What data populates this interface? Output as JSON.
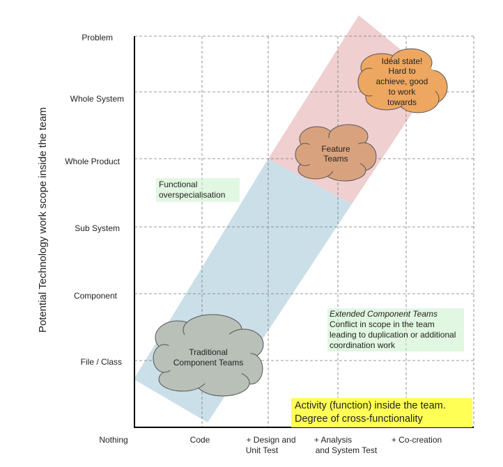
{
  "y_axis": {
    "title": "Potential Technology work scope inside the team",
    "levels": [
      "Problem",
      "Whole System",
      "Whole Product",
      "Sub System",
      "Component",
      "File / Class"
    ]
  },
  "x_axis": {
    "levels": [
      {
        "line1": "Nothing",
        "line2": ""
      },
      {
        "line1": "Code",
        "line2": ""
      },
      {
        "line1": "+ Design and",
        "line2": "Unit Test"
      },
      {
        "line1": "+ Analysis",
        "line2": "and System Test"
      },
      {
        "line1": "+ Co-creation",
        "line2": ""
      }
    ]
  },
  "clouds": {
    "ideal": {
      "lines": [
        "Ideal state!",
        "Hard to",
        "achieve, good",
        "to work",
        "towards"
      ],
      "color": "#eea760"
    },
    "feature": {
      "lines": [
        "Feature",
        "Teams"
      ],
      "color": "#d9a27e"
    },
    "traditional": {
      "lines": [
        "Traditional",
        "Component Teams"
      ],
      "color": "#b8c0b8"
    }
  },
  "bands": {
    "blue": "#a9c9d9",
    "red": "#e2a8aa"
  },
  "notes": {
    "functional": "Functional overspecialisation",
    "extended_title": "Extended Component Teams",
    "extended_body": "Conflict in scope in the team leading to duplication or additional coordination work",
    "activity_line1": "Activity (function) inside the team.",
    "activity_line2": "Degree of cross-functionality"
  }
}
